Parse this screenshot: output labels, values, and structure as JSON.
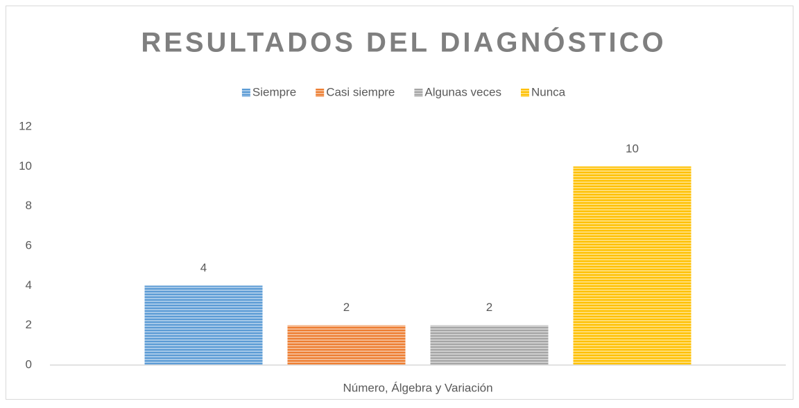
{
  "chart_data": {
    "type": "bar",
    "title": "RESULTADOS DEL DIAGNÓSTICO",
    "categories": [
      "Número, Álgebra y Variación"
    ],
    "series": [
      {
        "name": "Siempre",
        "color": "#5b9bd5",
        "values": [
          4
        ]
      },
      {
        "name": "Casi siempre",
        "color": "#ed7d31",
        "values": [
          2
        ]
      },
      {
        "name": "Algunas veces",
        "color": "#a5a5a5",
        "values": [
          2
        ]
      },
      {
        "name": "Nunca",
        "color": "#ffc000",
        "values": [
          10
        ]
      }
    ],
    "ylim": [
      0,
      12
    ],
    "yticks": [
      0,
      2,
      4,
      6,
      8,
      10,
      12
    ],
    "grid": false,
    "legend": "top",
    "data_labels": true
  }
}
